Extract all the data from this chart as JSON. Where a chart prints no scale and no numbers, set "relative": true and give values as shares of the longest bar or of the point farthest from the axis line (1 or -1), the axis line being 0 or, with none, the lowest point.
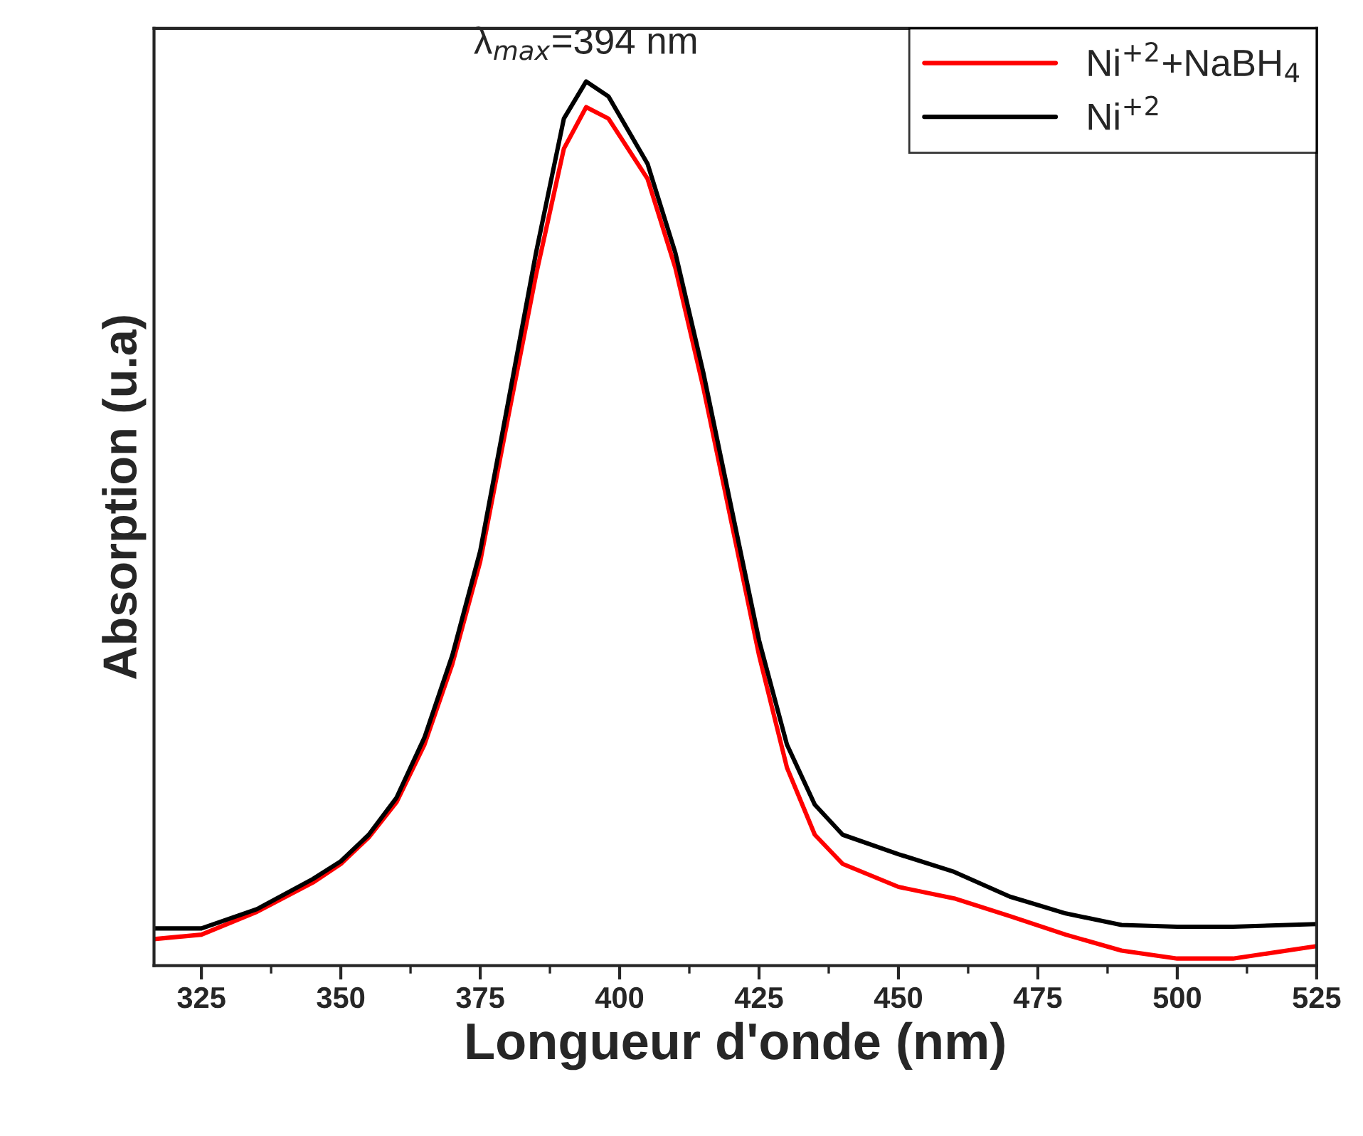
{
  "chart_data": {
    "type": "line",
    "xlabel": "Longueur d'onde (nm)",
    "ylabel": "Absorption (u.a)",
    "relative": true,
    "tick_labels": "x",
    "legend": "top right",
    "grid": false,
    "line_style": "solid",
    "marker": "none",
    "xlim": [
      316.5,
      525
    ],
    "xticks": [
      325,
      350,
      375,
      400,
      425,
      450,
      475,
      500,
      525
    ],
    "x": [
      316.5,
      325,
      335,
      345,
      350,
      355,
      360,
      365,
      370,
      375,
      380,
      385,
      390,
      394,
      398,
      405,
      410,
      415,
      420,
      425,
      430,
      435,
      440,
      450,
      460,
      470,
      480,
      490,
      500,
      510,
      525
    ],
    "series": [
      {
        "name": "Ni$^{+2}$+NaBH$_{4}$",
        "color": "#ff0000",
        "values": [
          0.03,
          0.035,
          0.061,
          0.094,
          0.115,
          0.145,
          0.185,
          0.25,
          0.341,
          0.457,
          0.62,
          0.781,
          0.924,
          0.971,
          0.958,
          0.89,
          0.789,
          0.654,
          0.503,
          0.351,
          0.224,
          0.148,
          0.115,
          0.089,
          0.076,
          0.056,
          0.035,
          0.017,
          0.008,
          0.008,
          0.022
        ]
      },
      {
        "name": "Ni$^{+2}$",
        "color": "#000000",
        "values": [
          0.042,
          0.042,
          0.064,
          0.098,
          0.118,
          0.148,
          0.19,
          0.258,
          0.351,
          0.469,
          0.637,
          0.806,
          0.958,
          1.0,
          0.983,
          0.907,
          0.806,
          0.671,
          0.519,
          0.368,
          0.25,
          0.182,
          0.148,
          0.126,
          0.106,
          0.078,
          0.059,
          0.046,
          0.044,
          0.044,
          0.047
        ]
      }
    ],
    "annotations": [
      {
        "text": "λ$_{max}$=394 nm",
        "x": 394,
        "y": 1.0
      }
    ]
  }
}
